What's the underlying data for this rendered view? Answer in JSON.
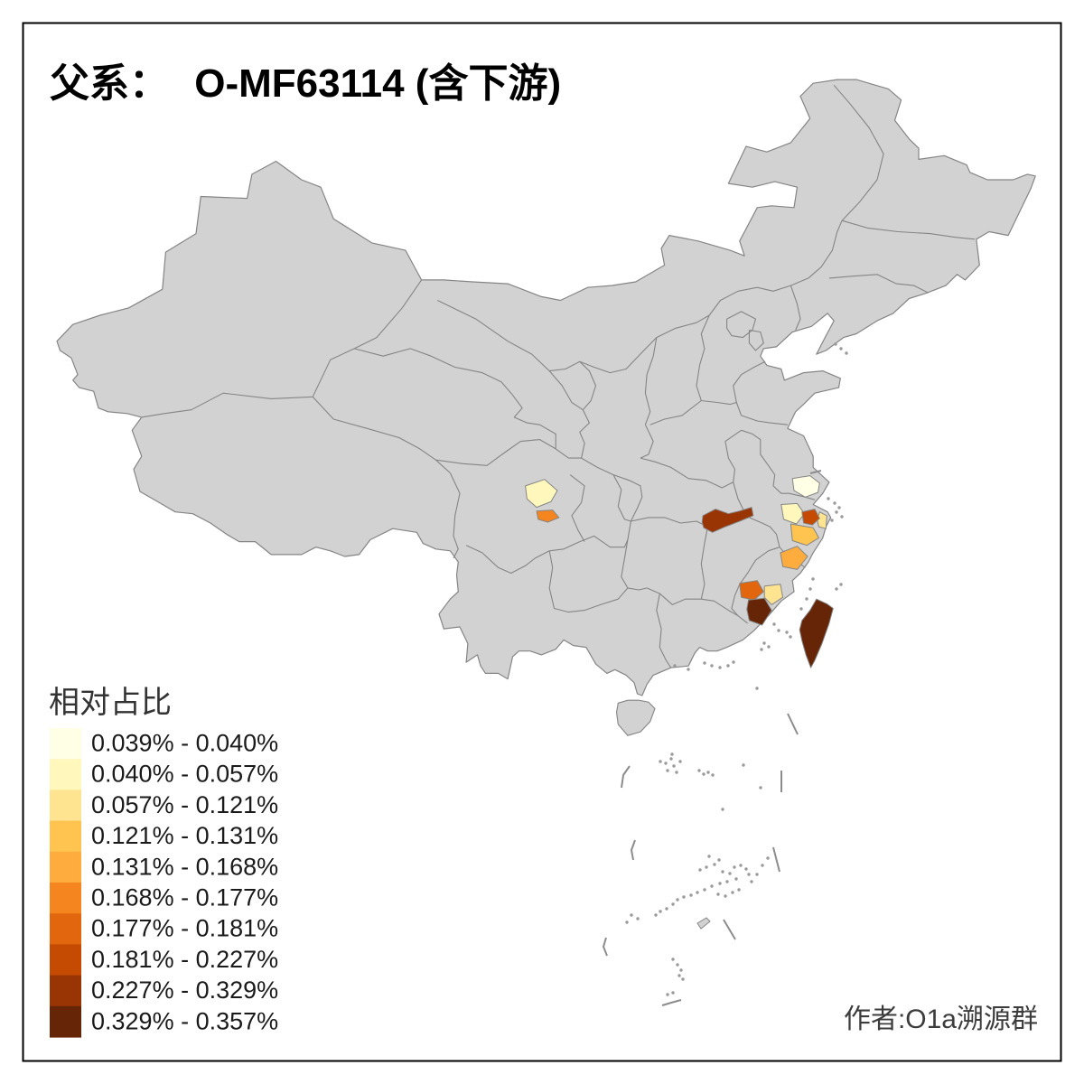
{
  "title": {
    "prefix": "父系：",
    "main": "O-MF63114 (含下游)"
  },
  "legend": {
    "title": "相对占比",
    "classes": [
      {
        "label": "0.039% - 0.040%",
        "color": "#FFFFE5"
      },
      {
        "label": "0.040% - 0.057%",
        "color": "#FFF7BC"
      },
      {
        "label": "0.057% - 0.121%",
        "color": "#FEE391"
      },
      {
        "label": "0.121% - 0.131%",
        "color": "#FEC44F"
      },
      {
        "label": "0.131% - 0.168%",
        "color": "#FDAC3D"
      },
      {
        "label": "0.168% - 0.177%",
        "color": "#F5861F"
      },
      {
        "label": "0.177% - 0.181%",
        "color": "#E2660D"
      },
      {
        "label": "0.181% - 0.227%",
        "color": "#C54B02"
      },
      {
        "label": "0.227% - 0.329%",
        "color": "#993404"
      },
      {
        "label": "0.329% - 0.357%",
        "color": "#662506"
      }
    ]
  },
  "attribution": "作者:O1a溯源群",
  "map": {
    "land_color": "#D2D2D2",
    "border_color": "#858585",
    "frame_color": "#000000",
    "background": "#FFFFFF",
    "region_classes": [
      1,
      2,
      2,
      3,
      3,
      4,
      5,
      6,
      7,
      8,
      9,
      10,
      10
    ]
  }
}
